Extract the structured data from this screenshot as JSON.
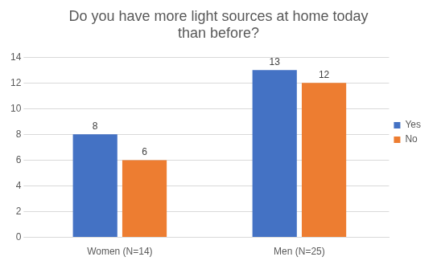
{
  "chart_data": {
    "type": "bar",
    "title": "Do you have more light sources at home today than before?",
    "categories": [
      "Women (N=14)",
      "Men (N=25)"
    ],
    "series": [
      {
        "name": "Yes",
        "color": "#4472c4",
        "values": [
          8,
          13
        ]
      },
      {
        "name": "No",
        "color": "#ed7d31",
        "values": [
          6,
          12
        ]
      }
    ],
    "ylim": [
      0,
      14
    ],
    "yticks": [
      0,
      2,
      4,
      6,
      8,
      10,
      12,
      14
    ],
    "grid": true,
    "legend": "right",
    "data_labels": true
  }
}
